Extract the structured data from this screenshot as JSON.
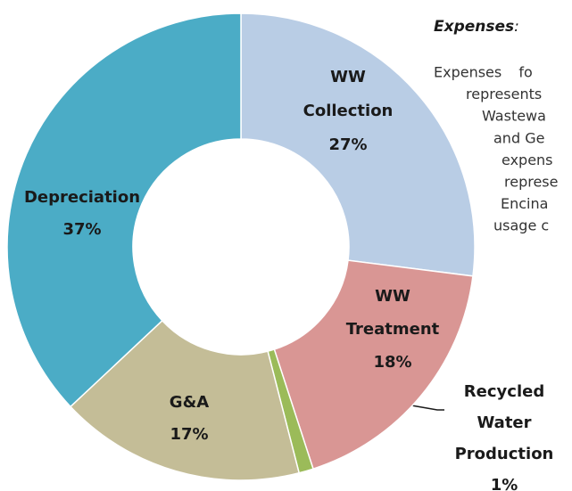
{
  "chart_data": {
    "type": "donut",
    "categories": [
      "WW Collection",
      "WW Treatment",
      "Recycled Water Production",
      "G&A",
      "Depreciation"
    ],
    "values": [
      27,
      18,
      1,
      17,
      37
    ],
    "value_labels": [
      "27%",
      "18%",
      "1%",
      "17%",
      "37%"
    ],
    "colors": [
      "#b9cde5",
      "#d99694",
      "#9bbb59",
      "#c4bd97",
      "#4bacc6"
    ]
  },
  "text": {
    "heading": "Expenses",
    "heading_suffix": ":",
    "lines": [
      "Expenses fo",
      "represents",
      "Wastewa",
      "and Ge",
      "expens",
      "represe",
      "Encina",
      "usage c"
    ]
  }
}
